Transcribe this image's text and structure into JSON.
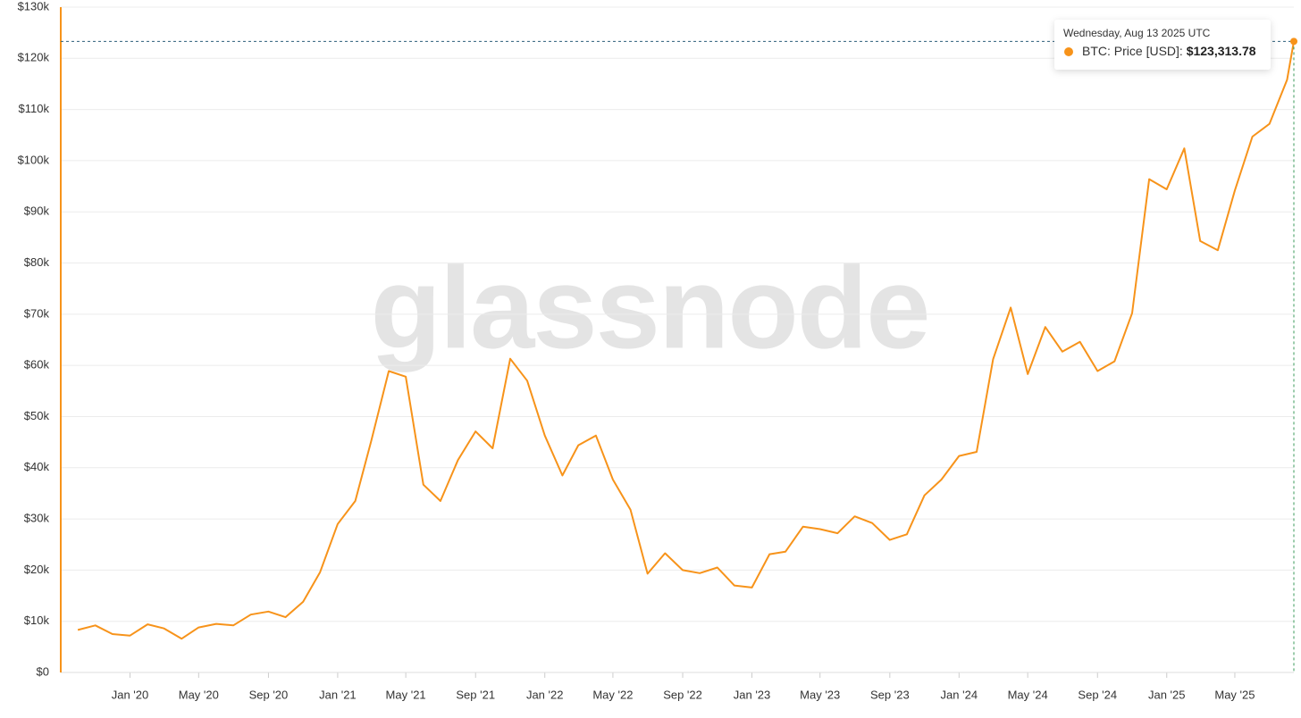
{
  "chart_data": {
    "type": "line",
    "watermark": "glassnode",
    "tooltip_title": "Wednesday, Aug 13 2025 UTC",
    "x": [
      "2019-10",
      "2019-11",
      "2019-12",
      "2020-01",
      "2020-02",
      "2020-03",
      "2020-04",
      "2020-05",
      "2020-06",
      "2020-07",
      "2020-08",
      "2020-09",
      "2020-10",
      "2020-11",
      "2020-12",
      "2021-01",
      "2021-02",
      "2021-03",
      "2021-04",
      "2021-05",
      "2021-06",
      "2021-07",
      "2021-08",
      "2021-09",
      "2021-10",
      "2021-11",
      "2021-12",
      "2022-01",
      "2022-02",
      "2022-03",
      "2022-04",
      "2022-05",
      "2022-06",
      "2022-07",
      "2022-08",
      "2022-09",
      "2022-10",
      "2022-11",
      "2022-12",
      "2023-01",
      "2023-02",
      "2023-03",
      "2023-04",
      "2023-05",
      "2023-06",
      "2023-07",
      "2023-08",
      "2023-09",
      "2023-10",
      "2023-11",
      "2023-12",
      "2024-01",
      "2024-02",
      "2024-03",
      "2024-04",
      "2024-05",
      "2024-06",
      "2024-07",
      "2024-08",
      "2024-09",
      "2024-10",
      "2024-11",
      "2024-12",
      "2025-01",
      "2025-02",
      "2025-03",
      "2025-04",
      "2025-05",
      "2025-06",
      "2025-07",
      "2025-08",
      "2025-08-13"
    ],
    "series": [
      {
        "name": "BTC: Price [USD]",
        "color": "#f7931a",
        "values": [
          8300,
          9200,
          7500,
          7200,
          9400,
          8600,
          6600,
          8800,
          9500,
          9200,
          11300,
          11900,
          10800,
          13800,
          19600,
          29000,
          33500,
          45200,
          58900,
          57800,
          36700,
          33500,
          41500,
          47100,
          43800,
          61300,
          57000,
          46300,
          38500,
          44400,
          46300,
          37700,
          31800,
          19300,
          23300,
          20000,
          19400,
          20500,
          17000,
          16600,
          23100,
          23600,
          28500,
          28000,
          27200,
          30500,
          29200,
          25900,
          27000,
          34600,
          37700,
          42300,
          43100,
          61200,
          71300,
          58300,
          67500,
          62700,
          64600,
          58900,
          60800,
          70200,
          96400,
          94400,
          102400,
          84300,
          82500,
          94200,
          104700,
          107200,
          115800,
          123313.78
        ],
        "value_labels": [
          null,
          null,
          null,
          null,
          null,
          null,
          null,
          null,
          null,
          null,
          null,
          null,
          null,
          null,
          null,
          null,
          null,
          null,
          null,
          null,
          null,
          null,
          null,
          null,
          null,
          null,
          null,
          null,
          null,
          null,
          null,
          null,
          null,
          null,
          null,
          null,
          null,
          null,
          null,
          null,
          null,
          null,
          null,
          null,
          null,
          null,
          null,
          null,
          null,
          null,
          null,
          null,
          null,
          null,
          null,
          null,
          null,
          null,
          null,
          null,
          null,
          null,
          null,
          null,
          null,
          null,
          null,
          null,
          null,
          null,
          null,
          "$123,313.78"
        ]
      }
    ],
    "xlim": [
      "2019-09",
      "2025-08-13"
    ],
    "xticks": [
      {
        "value": "2020-01",
        "label": "Jan '20"
      },
      {
        "value": "2020-05",
        "label": "May '20"
      },
      {
        "value": "2020-09",
        "label": "Sep '20"
      },
      {
        "value": "2021-01",
        "label": "Jan '21"
      },
      {
        "value": "2021-05",
        "label": "May '21"
      },
      {
        "value": "2021-09",
        "label": "Sep '21"
      },
      {
        "value": "2022-01",
        "label": "Jan '22"
      },
      {
        "value": "2022-05",
        "label": "May '22"
      },
      {
        "value": "2022-09",
        "label": "Sep '22"
      },
      {
        "value": "2023-01",
        "label": "Jan '23"
      },
      {
        "value": "2023-05",
        "label": "May '23"
      },
      {
        "value": "2023-09",
        "label": "Sep '23"
      },
      {
        "value": "2024-01",
        "label": "Jan '24"
      },
      {
        "value": "2024-05",
        "label": "May '24"
      },
      {
        "value": "2024-09",
        "label": "Sep '24"
      },
      {
        "value": "2025-01",
        "label": "Jan '25"
      },
      {
        "value": "2025-05",
        "label": "May '25"
      }
    ],
    "ylim": [
      0,
      130000
    ],
    "yticks": [
      {
        "value": 0,
        "label": "$0"
      },
      {
        "value": 10000,
        "label": "$10k"
      },
      {
        "value": 20000,
        "label": "$20k"
      },
      {
        "value": 30000,
        "label": "$30k"
      },
      {
        "value": 40000,
        "label": "$40k"
      },
      {
        "value": 50000,
        "label": "$50k"
      },
      {
        "value": 60000,
        "label": "$60k"
      },
      {
        "value": 70000,
        "label": "$70k"
      },
      {
        "value": 80000,
        "label": "$80k"
      },
      {
        "value": 90000,
        "label": "$90k"
      },
      {
        "value": 100000,
        "label": "$100k"
      },
      {
        "value": 110000,
        "label": "$110k"
      },
      {
        "value": 120000,
        "label": "$120k"
      },
      {
        "value": 130000,
        "label": "$130k"
      }
    ],
    "grid": true
  }
}
